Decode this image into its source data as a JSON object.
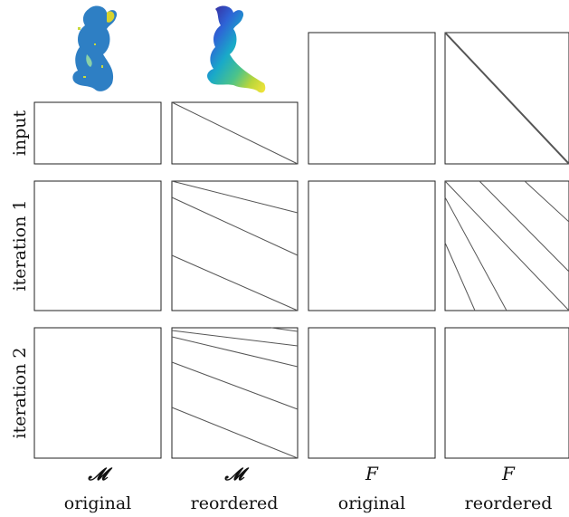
{
  "row_labels": [
    "input",
    "iteration 1",
    "iteration 2"
  ],
  "column_labels": [
    {
      "symbol": "𝓜",
      "name": "original"
    },
    {
      "symbol": "𝓜",
      "name": "reordered"
    },
    {
      "symbol": "F",
      "name": "original"
    },
    {
      "symbol": "F",
      "name": "reordered"
    }
  ],
  "colors": {
    "matrix_fill": "#5f5f5f",
    "matrix_line": "#555555",
    "frame": "#222222",
    "background": "#ffffff",
    "shape_colormap": [
      "#3a1d8f",
      "#2e63d6",
      "#19a9c9",
      "#4cc38a",
      "#b9d63b",
      "#f7e53a"
    ]
  },
  "thumbnails": [
    "shape-original-coloring",
    "shape-reordered-coloring"
  ]
}
